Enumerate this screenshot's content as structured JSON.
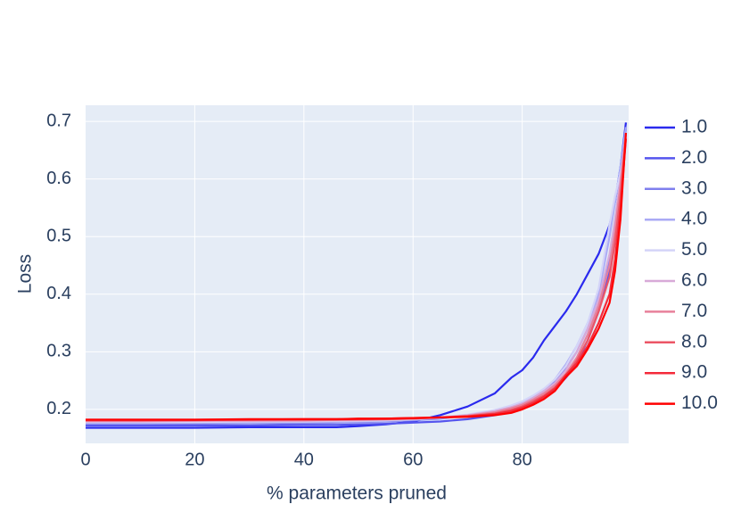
{
  "chart_data": {
    "type": "line",
    "x_label": "% parameters pruned",
    "y_label": "Loss",
    "x": [
      0,
      10,
      20,
      30,
      40,
      46,
      50,
      55,
      60,
      65,
      70,
      75,
      78,
      80,
      82,
      84,
      86,
      88,
      90,
      92,
      94,
      96,
      97,
      98,
      99
    ],
    "xlim": [
      0,
      99.5
    ],
    "ylim": [
      0.141,
      0.728
    ],
    "xticks": [
      0,
      20,
      40,
      60,
      80
    ],
    "yticks": [
      0.2,
      0.3,
      0.4,
      0.5,
      0.6,
      0.7
    ],
    "grid": true,
    "legend": "right",
    "series": [
      {
        "name": "1.0",
        "color": "#2a2aee",
        "values": [
          0.168,
          0.168,
          0.168,
          0.169,
          0.169,
          0.169,
          0.171,
          0.174,
          0.179,
          0.19,
          0.205,
          0.228,
          0.255,
          0.268,
          0.29,
          0.32,
          0.345,
          0.37,
          0.4,
          0.435,
          0.47,
          0.52,
          0.56,
          0.62,
          0.698
        ]
      },
      {
        "name": "2.0",
        "color": "#5555ee",
        "values": [
          0.172,
          0.172,
          0.172,
          0.172,
          0.173,
          0.173,
          0.174,
          0.175,
          0.177,
          0.179,
          0.183,
          0.19,
          0.197,
          0.203,
          0.212,
          0.222,
          0.235,
          0.255,
          0.28,
          0.32,
          0.37,
          0.44,
          0.5,
          0.58,
          0.69
        ]
      },
      {
        "name": "3.0",
        "color": "#7f7fee",
        "values": [
          0.175,
          0.175,
          0.175,
          0.176,
          0.176,
          0.177,
          0.178,
          0.179,
          0.181,
          0.184,
          0.19,
          0.197,
          0.204,
          0.21,
          0.22,
          0.232,
          0.248,
          0.27,
          0.3,
          0.34,
          0.39,
          0.46,
          0.52,
          0.6,
          0.69
        ]
      },
      {
        "name": "4.0",
        "color": "#aaaaf5",
        "values": [
          0.176,
          0.176,
          0.177,
          0.177,
          0.178,
          0.178,
          0.179,
          0.18,
          0.182,
          0.185,
          0.19,
          0.198,
          0.206,
          0.212,
          0.222,
          0.235,
          0.252,
          0.278,
          0.31,
          0.35,
          0.4,
          0.5,
          0.56,
          0.62,
          0.69
        ]
      },
      {
        "name": "5.0",
        "color": "#d4d4f8",
        "values": [
          0.178,
          0.178,
          0.178,
          0.179,
          0.179,
          0.18,
          0.18,
          0.181,
          0.183,
          0.186,
          0.191,
          0.199,
          0.207,
          0.214,
          0.224,
          0.236,
          0.252,
          0.275,
          0.31,
          0.35,
          0.41,
          0.52,
          0.57,
          0.61,
          0.66
        ]
      },
      {
        "name": "6.0",
        "color": "#d8aad8",
        "values": [
          0.179,
          0.179,
          0.18,
          0.18,
          0.18,
          0.181,
          0.181,
          0.182,
          0.184,
          0.186,
          0.19,
          0.197,
          0.204,
          0.21,
          0.22,
          0.232,
          0.246,
          0.268,
          0.3,
          0.34,
          0.39,
          0.47,
          0.53,
          0.6,
          0.68
        ]
      },
      {
        "name": "7.0",
        "color": "#e8809a",
        "values": [
          0.18,
          0.18,
          0.181,
          0.181,
          0.181,
          0.182,
          0.182,
          0.183,
          0.184,
          0.186,
          0.189,
          0.195,
          0.202,
          0.208,
          0.217,
          0.228,
          0.242,
          0.262,
          0.29,
          0.33,
          0.38,
          0.45,
          0.51,
          0.59,
          0.68
        ]
      },
      {
        "name": "8.0",
        "color": "#ec5566",
        "values": [
          0.181,
          0.181,
          0.181,
          0.182,
          0.182,
          0.182,
          0.183,
          0.183,
          0.184,
          0.186,
          0.188,
          0.193,
          0.199,
          0.205,
          0.214,
          0.224,
          0.238,
          0.258,
          0.285,
          0.32,
          0.37,
          0.43,
          0.49,
          0.57,
          0.67
        ]
      },
      {
        "name": "9.0",
        "color": "#f42a3a",
        "values": [
          0.182,
          0.182,
          0.182,
          0.182,
          0.183,
          0.183,
          0.183,
          0.184,
          0.185,
          0.186,
          0.188,
          0.192,
          0.197,
          0.203,
          0.211,
          0.222,
          0.236,
          0.26,
          0.28,
          0.31,
          0.35,
          0.4,
          0.46,
          0.55,
          0.67
        ]
      },
      {
        "name": "10.0",
        "color": "#ff0000",
        "values": [
          0.182,
          0.182,
          0.182,
          0.183,
          0.183,
          0.183,
          0.184,
          0.184,
          0.185,
          0.186,
          0.187,
          0.19,
          0.194,
          0.2,
          0.208,
          0.218,
          0.232,
          0.256,
          0.275,
          0.305,
          0.34,
          0.385,
          0.44,
          0.53,
          0.68
        ]
      }
    ]
  }
}
